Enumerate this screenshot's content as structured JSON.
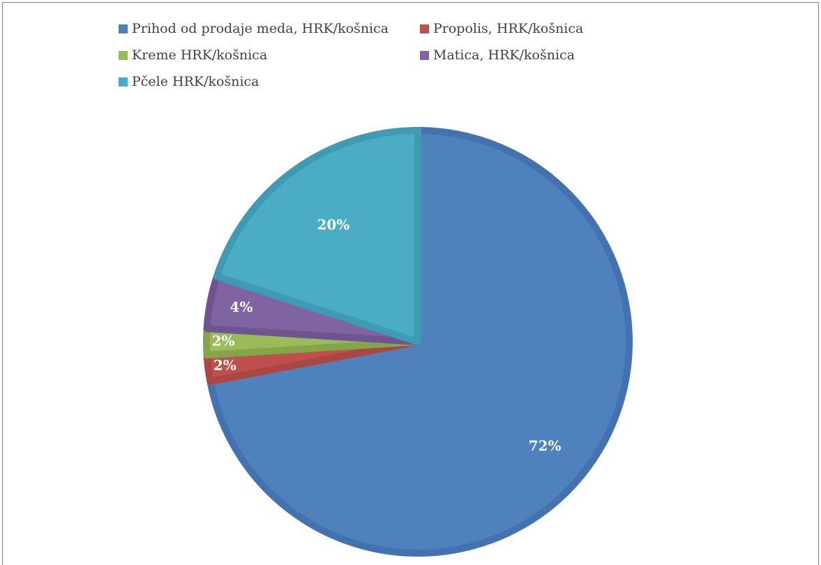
{
  "chart_data": {
    "type": "pie",
    "title": "",
    "legend_position": "top",
    "slices": [
      {
        "name": "Prihod od prodaje meda, HRK/košnica",
        "value": 72,
        "label": "72%",
        "color": "#4f81bd",
        "edge": "#4472b0"
      },
      {
        "name": "Propolis, HRK/košnica",
        "value": 2,
        "label": "2%",
        "color": "#c0504d",
        "edge": "#a94744"
      },
      {
        "name": "Kreme HRK/košnica",
        "value": 2,
        "label": "2%",
        "color": "#9bbb59",
        "edge": "#86a44a"
      },
      {
        "name": "Matica, HRK/košnica",
        "value": 4,
        "label": "4%",
        "color": "#8064a2",
        "edge": "#6e5590"
      },
      {
        "name": "Pčele HRK/košnica",
        "value": 20,
        "label": "20%",
        "color": "#4bacc6",
        "edge": "#3f9ab3"
      }
    ]
  }
}
